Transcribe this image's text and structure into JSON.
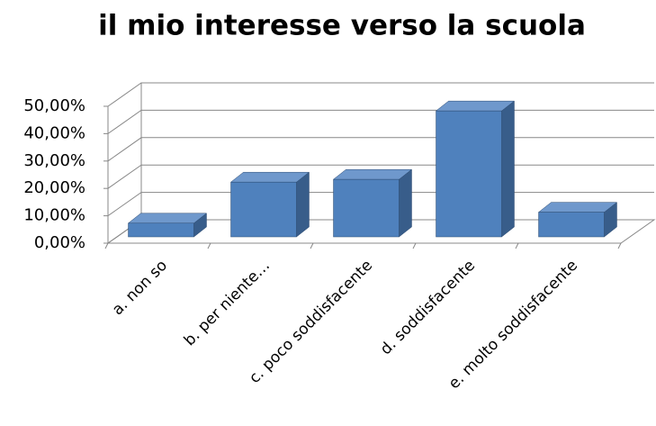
{
  "chart_data": {
    "type": "bar3d",
    "title": "il mio interesse verso la scuola",
    "categories": [
      "a. non so",
      "b. per niente…",
      "c. poco soddisfacente",
      "d. soddisfacente",
      "e. molto soddisfacente"
    ],
    "values": [
      5,
      20,
      21,
      46,
      9
    ],
    "color": "#4f81bd",
    "ylim": [
      0,
      50
    ],
    "yticks": [
      {
        "value": 0,
        "label": "0,00%"
      },
      {
        "value": 10,
        "label": "10,00%"
      },
      {
        "value": 20,
        "label": "20,00%"
      },
      {
        "value": 30,
        "label": "30,00%"
      },
      {
        "value": 40,
        "label": "40,00%"
      },
      {
        "value": 50,
        "label": "50,00%"
      }
    ],
    "grid": true
  }
}
